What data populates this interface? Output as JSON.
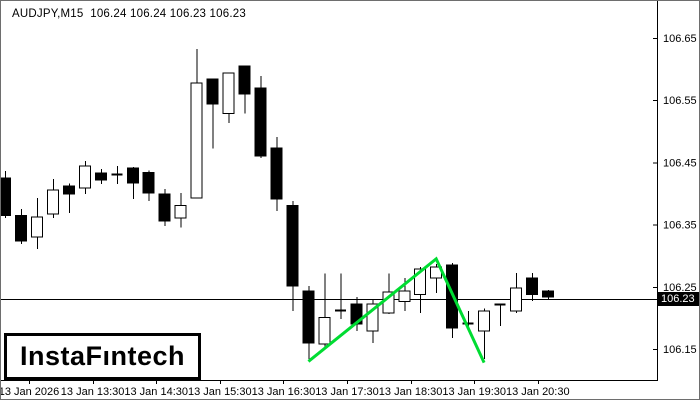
{
  "header": {
    "title_line": "AUDJPY,M15  106.24 106.24 106.23 106.23"
  },
  "watermark": {
    "text": "InstaFıntech"
  },
  "chart_data": {
    "type": "candlestick",
    "symbol": "AUDJPY",
    "timeframe": "M15",
    "ohlc_line": "106.24 106.24 106.23 106.23",
    "current_price": 106.23,
    "current_price_label": "106.23",
    "ylim": [
      106.095,
      106.709
    ],
    "grid": false,
    "y_ticks": [
      106.65,
      106.55,
      106.45,
      106.35,
      106.25,
      106.15
    ],
    "y_tick_labels": [
      "106.65",
      "106.55",
      "106.45",
      "106.35",
      "106.25",
      "106.15"
    ],
    "x_labels": [
      "13 Jan 2026",
      "13 Jan 13:30",
      "13 Jan 14:30",
      "13 Jan 15:30",
      "13 Jan 16:30",
      "13 Jan 17:30",
      "13 Jan 18:30",
      "13 Jan 19:30",
      "13 Jan 20:30"
    ],
    "bar_interval_min": 15,
    "candles": [
      {
        "t": "12:15",
        "o": 106.425,
        "h": 106.436,
        "l": 106.361,
        "c": 106.365
      },
      {
        "t": "12:30",
        "o": 106.365,
        "h": 106.375,
        "l": 106.319,
        "c": 106.324
      },
      {
        "t": "12:45",
        "o": 106.33,
        "h": 106.393,
        "l": 106.311,
        "c": 106.362
      },
      {
        "t": "13:00",
        "o": 106.367,
        "h": 106.423,
        "l": 106.361,
        "c": 106.406
      },
      {
        "t": "13:15",
        "o": 106.412,
        "h": 106.416,
        "l": 106.369,
        "c": 106.399
      },
      {
        "t": "13:30",
        "o": 106.409,
        "h": 106.452,
        "l": 106.399,
        "c": 106.444
      },
      {
        "t": "13:45",
        "o": 106.433,
        "h": 106.439,
        "l": 106.415,
        "c": 106.422
      },
      {
        "t": "14:00",
        "o": 106.431,
        "h": 106.444,
        "l": 106.415,
        "c": 106.431
      },
      {
        "t": "14:15",
        "o": 106.441,
        "h": 106.443,
        "l": 106.391,
        "c": 106.417
      },
      {
        "t": "14:30",
        "o": 106.434,
        "h": 106.437,
        "l": 106.388,
        "c": 106.401
      },
      {
        "t": "14:45",
        "o": 106.399,
        "h": 106.407,
        "l": 106.348,
        "c": 106.356
      },
      {
        "t": "15:00",
        "o": 106.361,
        "h": 106.401,
        "l": 106.345,
        "c": 106.381
      },
      {
        "t": "15:15",
        "o": 106.393,
        "h": 106.632,
        "l": 106.392,
        "c": 106.578
      },
      {
        "t": "15:30",
        "o": 106.584,
        "h": 106.585,
        "l": 106.472,
        "c": 106.544
      },
      {
        "t": "15:45",
        "o": 106.529,
        "h": 106.594,
        "l": 106.513,
        "c": 106.594
      },
      {
        "t": "16:00",
        "o": 106.605,
        "h": 106.606,
        "l": 106.529,
        "c": 106.56
      },
      {
        "t": "16:15",
        "o": 106.57,
        "h": 106.589,
        "l": 106.457,
        "c": 106.46
      },
      {
        "t": "16:30",
        "o": 106.473,
        "h": 106.491,
        "l": 106.372,
        "c": 106.391
      },
      {
        "t": "16:45",
        "o": 106.381,
        "h": 106.388,
        "l": 106.211,
        "c": 106.251
      },
      {
        "t": "17:00",
        "o": 106.243,
        "h": 106.251,
        "l": 106.134,
        "c": 106.16
      },
      {
        "t": "17:15",
        "o": 106.158,
        "h": 106.271,
        "l": 106.152,
        "c": 106.201
      },
      {
        "t": "17:30",
        "o": 106.211,
        "h": 106.271,
        "l": 106.198,
        "c": 106.212
      },
      {
        "t": "17:45",
        "o": 106.222,
        "h": 106.234,
        "l": 106.179,
        "c": 106.19
      },
      {
        "t": "18:00",
        "o": 106.179,
        "h": 106.23,
        "l": 106.16,
        "c": 106.222
      },
      {
        "t": "18:15",
        "o": 106.208,
        "h": 106.271,
        "l": 106.206,
        "c": 106.242
      },
      {
        "t": "18:30",
        "o": 106.226,
        "h": 106.264,
        "l": 106.211,
        "c": 106.243
      },
      {
        "t": "18:45",
        "o": 106.238,
        "h": 106.282,
        "l": 106.208,
        "c": 106.279
      },
      {
        "t": "19:00",
        "o": 106.264,
        "h": 106.287,
        "l": 106.24,
        "c": 106.282
      },
      {
        "t": "19:15",
        "o": 106.285,
        "h": 106.288,
        "l": 106.168,
        "c": 106.184
      },
      {
        "t": "19:30",
        "o": 106.192,
        "h": 106.211,
        "l": 106.179,
        "c": 106.192
      },
      {
        "t": "19:45",
        "o": 106.179,
        "h": 106.215,
        "l": 106.134,
        "c": 106.211
      },
      {
        "t": "20:00",
        "o": 106.222,
        "h": 106.223,
        "l": 106.187,
        "c": 106.222
      },
      {
        "t": "20:15",
        "o": 106.211,
        "h": 106.272,
        "l": 106.208,
        "c": 106.248
      },
      {
        "t": "20:30",
        "o": 106.264,
        "h": 106.272,
        "l": 106.227,
        "c": 106.238
      },
      {
        "t": "20:45",
        "o": 106.243,
        "h": 106.245,
        "l": 106.229,
        "c": 106.234
      }
    ],
    "zigzag": {
      "color": "#00DC32",
      "points": [
        {
          "bar": 20,
          "price": 106.13
        },
        {
          "bar": 28,
          "price": 106.295
        },
        {
          "bar": 31,
          "price": 106.128
        }
      ]
    },
    "colors": {
      "bull_fill": "#ffffff",
      "bear_fill": "#000000",
      "outline": "#000000",
      "background": "#ffffff",
      "price_line": "#000000",
      "badge_bg": "#000000",
      "badge_text": "#ffffff"
    },
    "legend_position": "none"
  }
}
